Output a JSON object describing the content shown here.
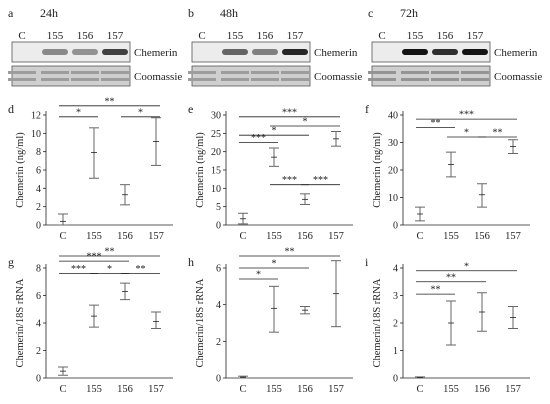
{
  "colors": {
    "ink": "#222222",
    "bar": "#666666",
    "blot_dark": "#1a1a1a",
    "gel_bg": "#dcdcdc",
    "coomassie_band": "#a0a0a0"
  },
  "chart_data": [
    {
      "panel": "a",
      "type": "blot",
      "title": "24h",
      "lanes": [
        "C",
        "155",
        "156",
        "157"
      ],
      "rows": [
        {
          "label": "Chemerin",
          "intensity": [
            0.0,
            0.35,
            0.3,
            0.75
          ]
        },
        {
          "label": "Coomassie",
          "intensity": [
            0.3,
            0.3,
            0.3,
            0.3
          ]
        }
      ]
    },
    {
      "panel": "b",
      "type": "blot",
      "title": "48h",
      "lanes": [
        "C",
        "155",
        "156",
        "157"
      ],
      "rows": [
        {
          "label": "Chemerin",
          "intensity": [
            0.0,
            0.55,
            0.4,
            0.9
          ]
        },
        {
          "label": "Coomassie",
          "intensity": [
            0.3,
            0.3,
            0.3,
            0.3
          ]
        }
      ]
    },
    {
      "panel": "c",
      "type": "blot",
      "title": "72h",
      "lanes": [
        "C",
        "155",
        "156",
        "157"
      ],
      "rows": [
        {
          "label": "Chemerin",
          "intensity": [
            0.0,
            1.0,
            0.85,
            1.0
          ]
        },
        {
          "label": "Coomassie",
          "intensity": [
            0.45,
            0.45,
            0.45,
            0.45
          ]
        }
      ]
    },
    {
      "panel": "d",
      "type": "errorbar",
      "ylabel": "Chemerin (ng/ml)",
      "categories": [
        "C",
        "155",
        "156",
        "157"
      ],
      "ylim": [
        0,
        12
      ],
      "yticks": [
        0,
        2,
        4,
        6,
        8,
        10,
        12
      ],
      "mean": [
        0.4,
        7.9,
        3.3,
        9.1
      ],
      "low": [
        0.0,
        5.1,
        2.2,
        6.5
      ],
      "high": [
        1.2,
        10.6,
        4.4,
        11.7
      ],
      "comparisons": [
        {
          "from": 0,
          "to": 3,
          "y": 13.0,
          "label": "**"
        },
        {
          "from": 0,
          "to": 1,
          "y": 11.8,
          "label": "*"
        },
        {
          "from": 2,
          "to": 3,
          "y": 11.8,
          "label": "*"
        }
      ]
    },
    {
      "panel": "e",
      "type": "errorbar",
      "ylabel": "Chemerin (ng/ml)",
      "categories": [
        "C",
        "155",
        "156",
        "157"
      ],
      "ylim": [
        0,
        30
      ],
      "yticks": [
        0,
        5,
        10,
        15,
        20,
        25,
        30
      ],
      "mean": [
        1.7,
        18.5,
        7.0,
        23.5
      ],
      "low": [
        0.3,
        16.0,
        5.6,
        21.5
      ],
      "high": [
        3.2,
        21.0,
        8.5,
        25.5
      ],
      "comparisons": [
        {
          "from": 0,
          "to": 3,
          "y": 29.5,
          "label": "***"
        },
        {
          "from": 1,
          "to": 3,
          "y": 27.0,
          "label": "*"
        },
        {
          "from": 0,
          "to": 2,
          "y": 24.5,
          "label": "*"
        },
        {
          "from": 0,
          "to": 1,
          "y": 22.5,
          "label": "***"
        },
        {
          "from": 1,
          "to": 2,
          "y": 11.0,
          "label": "***"
        },
        {
          "from": 2,
          "to": 3,
          "y": 11.0,
          "label": "***"
        }
      ]
    },
    {
      "panel": "f",
      "type": "errorbar",
      "ylabel": "Chemerin (ng/ml)",
      "categories": [
        "C",
        "155",
        "156",
        "157"
      ],
      "ylim": [
        0,
        40
      ],
      "yticks": [
        0,
        10,
        20,
        30,
        40
      ],
      "mean": [
        4.0,
        22.0,
        11.0,
        28.5
      ],
      "low": [
        1.5,
        17.5,
        6.5,
        26.0
      ],
      "high": [
        6.5,
        26.5,
        15.0,
        31.0
      ],
      "comparisons": [
        {
          "from": 0,
          "to": 3,
          "y": 38.5,
          "label": "***"
        },
        {
          "from": 0,
          "to": 1,
          "y": 35.5,
          "label": "**"
        },
        {
          "from": 1,
          "to": 2,
          "y": 32.0,
          "label": "*"
        },
        {
          "from": 2,
          "to": 3,
          "y": 32.0,
          "label": "**"
        }
      ]
    },
    {
      "panel": "g",
      "type": "errorbar",
      "ylabel": "Chemerin/18S rRNA",
      "categories": [
        "C",
        "155",
        "156",
        "157"
      ],
      "ylim": [
        0,
        8
      ],
      "yticks": [
        0,
        2,
        4,
        6,
        8
      ],
      "mean": [
        0.5,
        4.5,
        6.3,
        4.1
      ],
      "low": [
        0.2,
        3.7,
        5.7,
        3.6
      ],
      "high": [
        0.8,
        5.3,
        6.9,
        4.8
      ],
      "comparisons": [
        {
          "from": 0,
          "to": 3,
          "y": 9.2,
          "label": "**"
        },
        {
          "from": 0,
          "to": 2,
          "y": 8.5,
          "label": "***"
        },
        {
          "from": 0,
          "to": 1,
          "y": 7.6,
          "label": "***"
        },
        {
          "from": 1,
          "to": 2,
          "y": 7.6,
          "label": "*"
        },
        {
          "from": 2,
          "to": 3,
          "y": 7.6,
          "label": "**"
        }
      ]
    },
    {
      "panel": "h",
      "type": "errorbar",
      "ylabel": "Chemerin/18S rRNA",
      "categories": [
        "C",
        "155",
        "156",
        "157"
      ],
      "ylim": [
        0,
        6
      ],
      "yticks": [
        0,
        2,
        4,
        6
      ],
      "mean": [
        0.05,
        3.8,
        3.7,
        4.6
      ],
      "low": [
        0.0,
        2.5,
        3.5,
        2.8
      ],
      "high": [
        0.1,
        5.0,
        3.9,
        6.4
      ],
      "comparisons": [
        {
          "from": 0,
          "to": 3,
          "y": 7.0,
          "label": "**"
        },
        {
          "from": 0,
          "to": 2,
          "y": 6.0,
          "label": "*"
        },
        {
          "from": 0,
          "to": 1,
          "y": 5.4,
          "label": "*"
        }
      ]
    },
    {
      "panel": "i",
      "type": "errorbar",
      "ylabel": "Chemerin/18S rRNA",
      "categories": [
        "C",
        "155",
        "156",
        "157"
      ],
      "ylim": [
        0,
        4
      ],
      "yticks": [
        0,
        1,
        2,
        3,
        4
      ],
      "mean": [
        0.02,
        2.0,
        2.4,
        2.2
      ],
      "low": [
        0.0,
        1.2,
        1.7,
        1.8
      ],
      "high": [
        0.04,
        2.8,
        3.1,
        2.6
      ],
      "comparisons": [
        {
          "from": 0,
          "to": 3,
          "y": 3.9,
          "label": "*"
        },
        {
          "from": 0,
          "to": 2,
          "y": 3.5,
          "label": "**"
        },
        {
          "from": 0,
          "to": 1,
          "y": 3.05,
          "label": "**"
        }
      ]
    }
  ]
}
